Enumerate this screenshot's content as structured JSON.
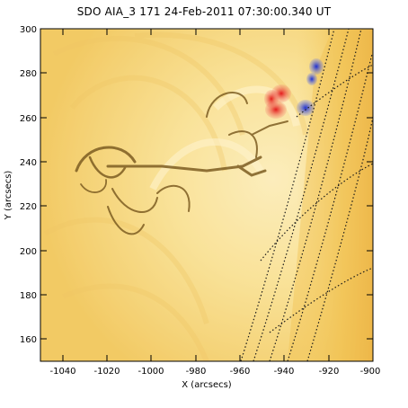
{
  "header": {
    "title": "SDO AIA_3 171 24-Feb-2011 07:30:00.340 UT"
  },
  "axes": {
    "xlabel": "X (arcsecs)",
    "ylabel": "Y (arcsecs)",
    "x_range": [
      -1050,
      -900
    ],
    "y_range": [
      150,
      300
    ],
    "x_ticks": [
      "-1040",
      "-1020",
      "-1000",
      "-980",
      "-960",
      "-940",
      "-920",
      "-900"
    ],
    "y_ticks": [
      "160",
      "180",
      "200",
      "220",
      "240",
      "260",
      "280",
      "300"
    ]
  },
  "image": {
    "description_colors": {
      "background": "#f6d680",
      "bright": "#fcefc0",
      "loops": "#8a6a2a",
      "red_blob": "#e8302a",
      "blue_blob": "#2f3fd8",
      "grid": "#1a1a1a"
    }
  }
}
